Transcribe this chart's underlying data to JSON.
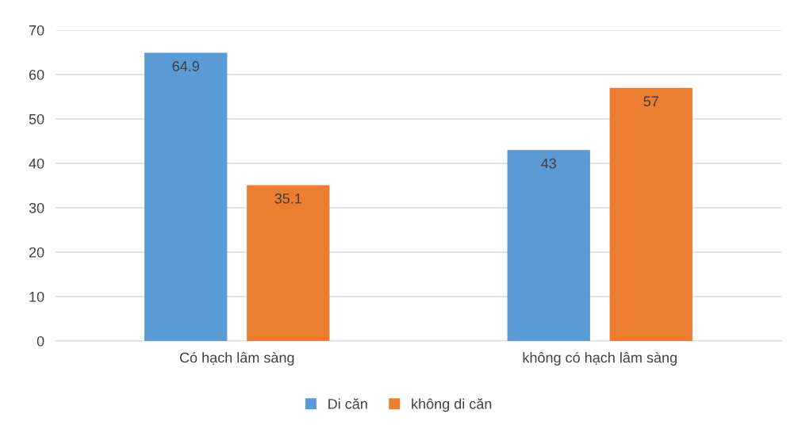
{
  "chart_data": {
    "type": "bar",
    "categories": [
      "Có hạch lâm sàng",
      "không có hạch lâm sàng"
    ],
    "series": [
      {
        "name": "Di căn",
        "color": "#5b9bd5",
        "values": [
          64.9,
          43
        ]
      },
      {
        "name": "không di căn",
        "color": "#ed7d31",
        "values": [
          35.1,
          57
        ]
      }
    ],
    "ylim": [
      0,
      70
    ],
    "yticks": [
      0,
      10,
      20,
      30,
      40,
      50,
      60,
      70
    ],
    "grid": "y",
    "legend": "bottom",
    "data_labels": true
  }
}
